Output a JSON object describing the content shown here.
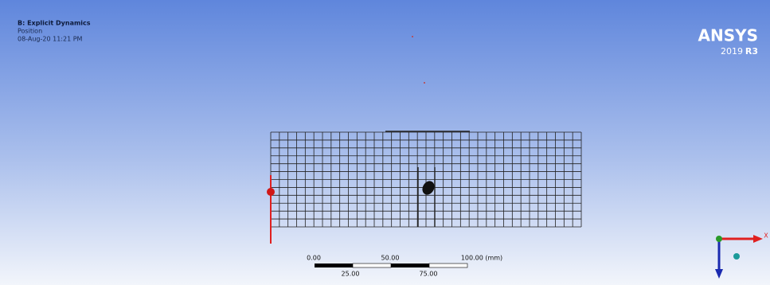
{
  "header": {
    "title": "B: Explicit Dynamics",
    "subtitle": "Position",
    "timestamp": "08-Aug-20 11:21 PM"
  },
  "logo": {
    "brand": "ANSYS",
    "year": "2019",
    "release": "R3"
  },
  "scale_bar": {
    "top_labels": [
      "0.00",
      "50.00",
      "100.00 (mm)"
    ],
    "bottom_labels": [
      "25.00",
      "75.00"
    ]
  },
  "triad": {
    "x_label": "X"
  }
}
